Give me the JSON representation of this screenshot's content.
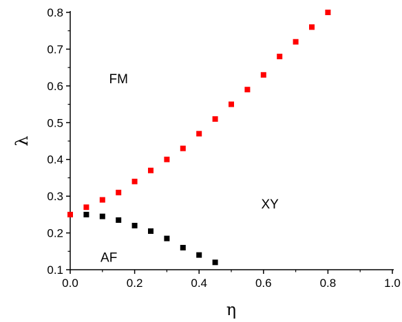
{
  "chart_data": {
    "type": "scatter",
    "xlabel": "η",
    "ylabel": "λ",
    "xlim": [
      0.0,
      1.0
    ],
    "ylim": [
      0.1,
      0.8
    ],
    "x_ticks": [
      "0.0",
      "0.2",
      "0.4",
      "0.6",
      "0.8",
      "1.0"
    ],
    "y_ticks": [
      "0.1",
      "0.2",
      "0.3",
      "0.4",
      "0.5",
      "0.6",
      "0.7",
      "0.8"
    ],
    "grid": false,
    "legend": "none",
    "annotations": [
      {
        "text": "FM",
        "x": 0.15,
        "y": 0.62
      },
      {
        "text": "XY",
        "x": 0.62,
        "y": 0.28
      },
      {
        "text": "AF",
        "x": 0.12,
        "y": 0.135
      }
    ],
    "series": [
      {
        "color": "#ff0000",
        "marker": "square",
        "x": [
          0.0,
          0.05,
          0.1,
          0.15,
          0.2,
          0.25,
          0.3,
          0.35,
          0.4,
          0.45,
          0.5,
          0.55,
          0.6,
          0.65,
          0.7,
          0.75,
          0.8
        ],
        "y": [
          0.25,
          0.27,
          0.29,
          0.31,
          0.34,
          0.37,
          0.4,
          0.43,
          0.47,
          0.51,
          0.55,
          0.59,
          0.63,
          0.68,
          0.72,
          0.76,
          0.8
        ]
      },
      {
        "color": "#000000",
        "marker": "square",
        "x": [
          0.05,
          0.1,
          0.15,
          0.2,
          0.25,
          0.3,
          0.35,
          0.4,
          0.45
        ],
        "y": [
          0.25,
          0.245,
          0.235,
          0.22,
          0.205,
          0.185,
          0.16,
          0.14,
          0.12
        ]
      }
    ]
  }
}
